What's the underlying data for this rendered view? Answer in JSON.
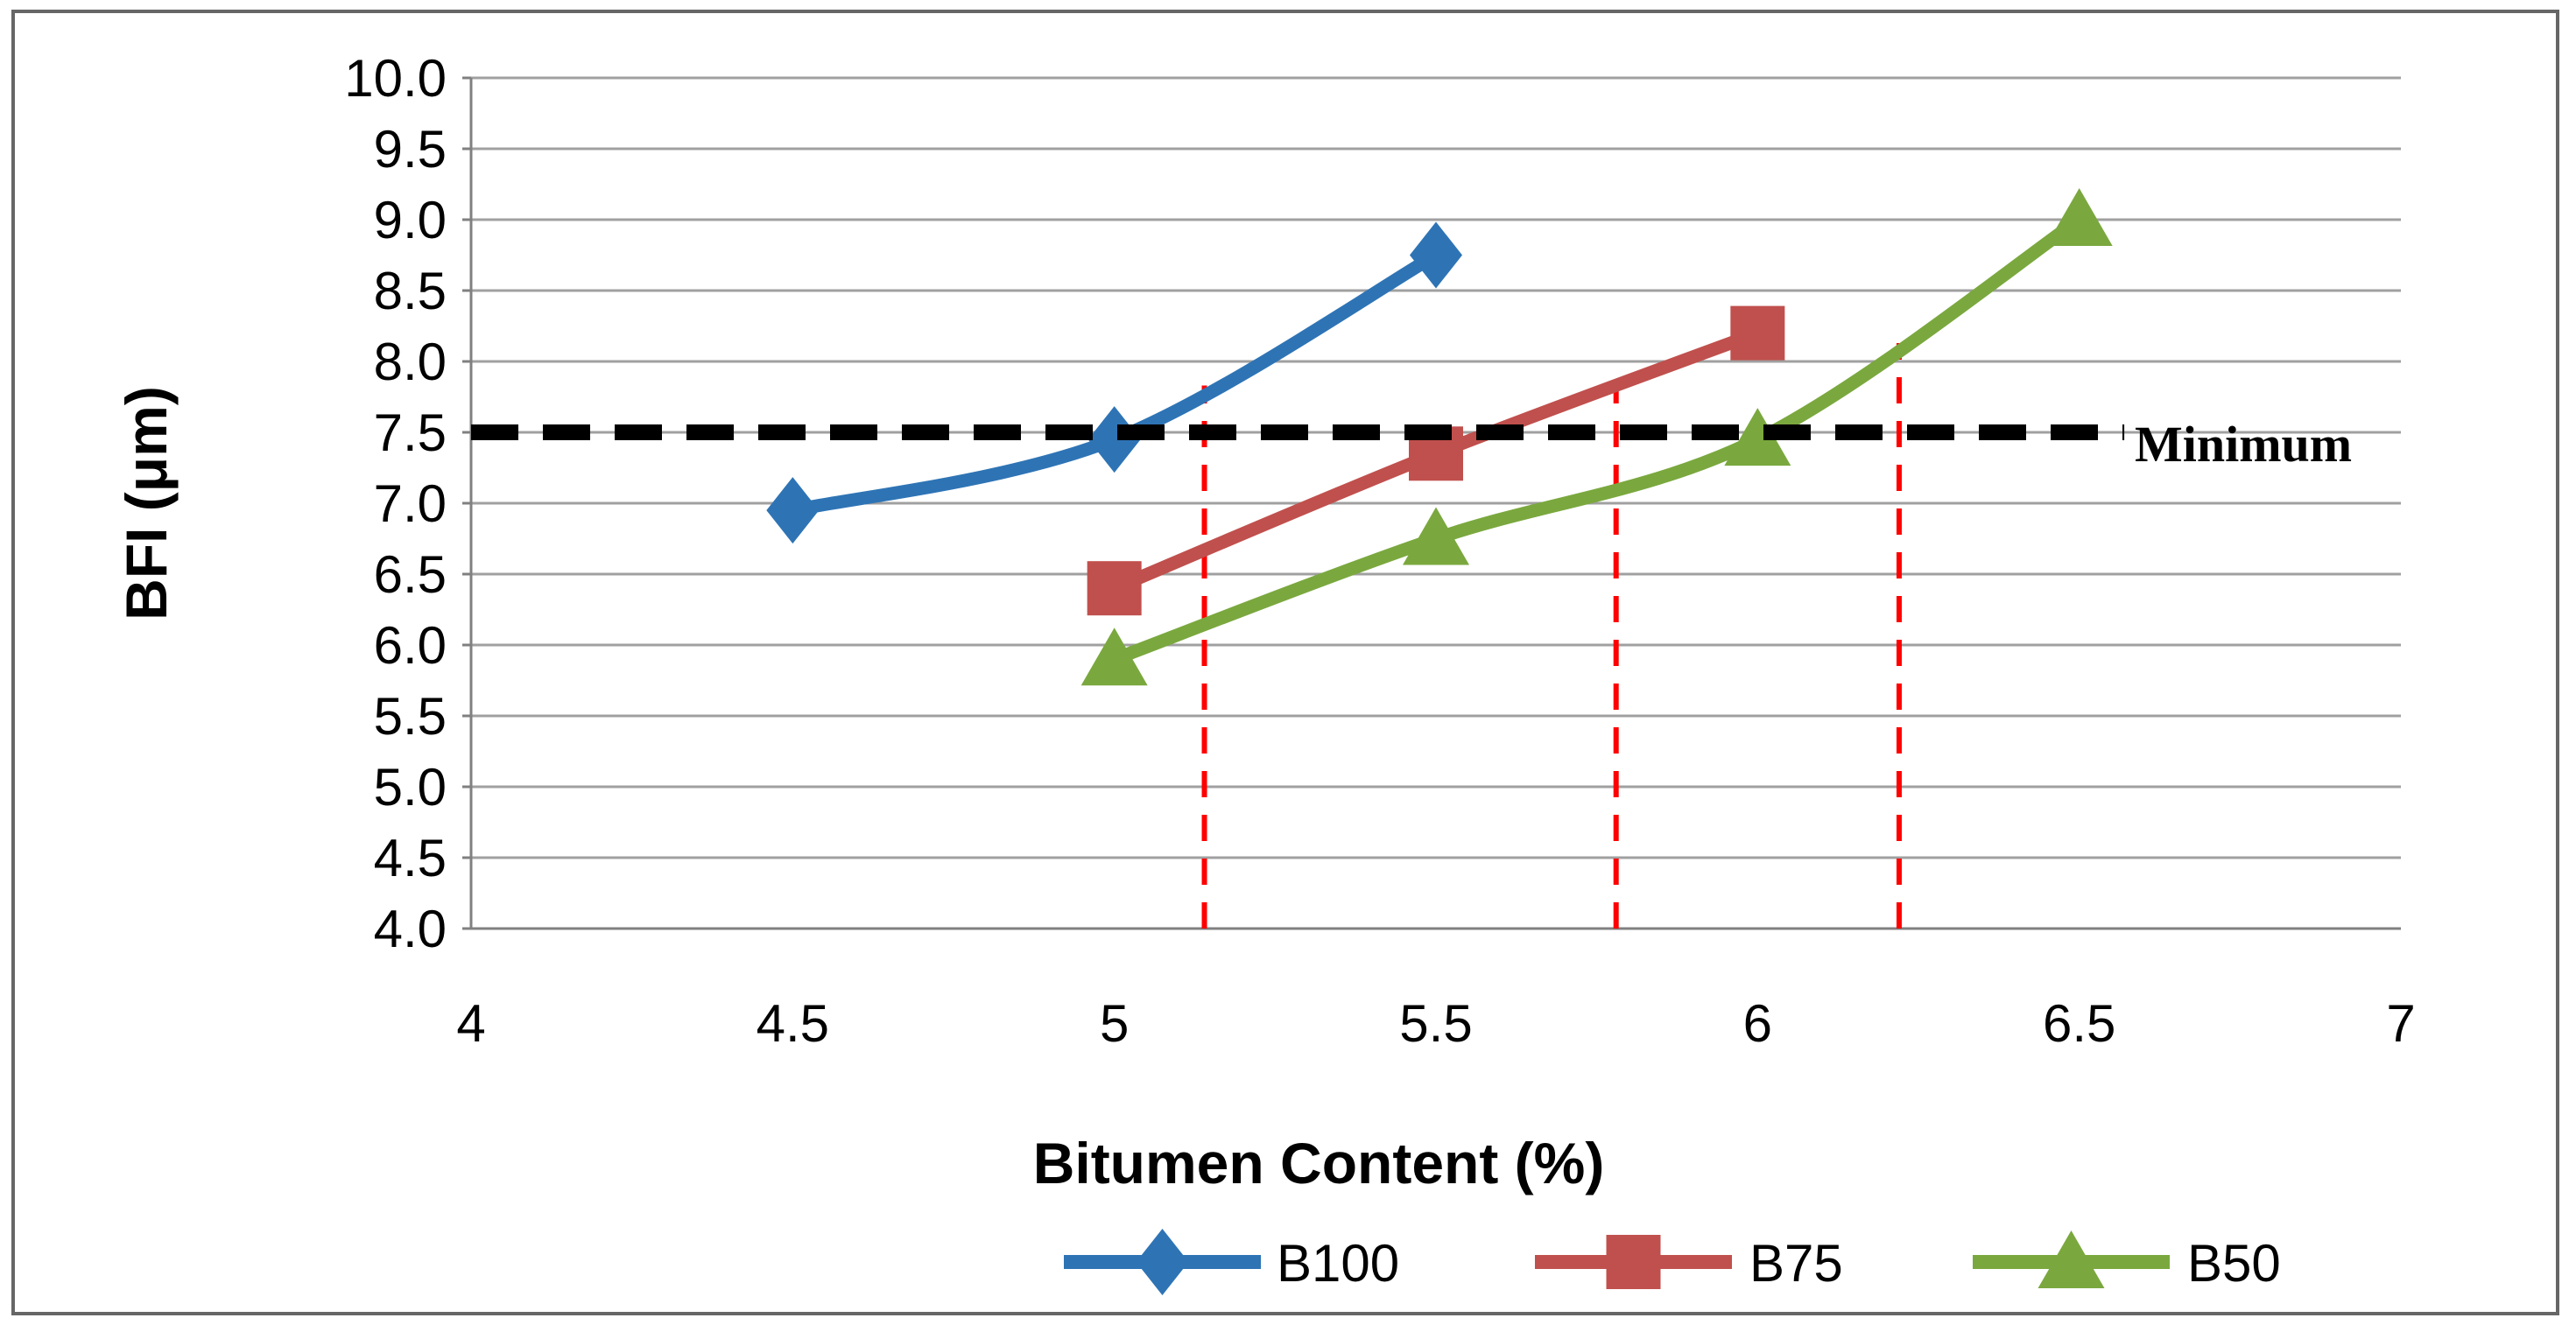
{
  "figure": {
    "background": "#ffffff",
    "border_color": "#666666",
    "gridline_color": "#a0a0a0",
    "axis_color": "#808080"
  },
  "chart_data": {
    "type": "line",
    "title": "",
    "xlabel": "Bitumen Content (%)",
    "ylabel": "BFI (μm)",
    "xlim": [
      4,
      7
    ],
    "ylim": [
      4,
      10
    ],
    "x_ticks": [
      "4",
      "4.5",
      "5",
      "5.5",
      "6",
      "6.5",
      "7"
    ],
    "y_ticks": [
      "4.0",
      "4.5",
      "5.0",
      "5.5",
      "6.0",
      "6.5",
      "7.0",
      "7.5",
      "8.0",
      "8.5",
      "9.0",
      "9.5",
      "10.0"
    ],
    "grid": true,
    "legend_position": "bottom",
    "series": [
      {
        "name": "B100",
        "color": "#2E74B5",
        "marker": "diamond",
        "points": [
          [
            4.5,
            6.95
          ],
          [
            5.0,
            7.45
          ],
          [
            5.5,
            8.75
          ]
        ]
      },
      {
        "name": "B75",
        "color": "#C0504D",
        "marker": "square",
        "points": [
          [
            5.0,
            6.4
          ],
          [
            5.5,
            7.35
          ],
          [
            6.0,
            8.2
          ]
        ]
      },
      {
        "name": "B50",
        "color": "#7AA83E",
        "marker": "triangle",
        "points": [
          [
            5.0,
            5.9
          ],
          [
            5.5,
            6.75
          ],
          [
            6.0,
            7.45
          ],
          [
            6.5,
            9.0
          ]
        ]
      }
    ],
    "reference_line": {
      "label": "Minimum",
      "y": 7.5,
      "x_start": 4.0,
      "x_end": 6.57,
      "color": "#000000",
      "style": "dashed"
    },
    "indicator_lines": {
      "color": "#FF0000",
      "style": "dashed",
      "y_bottom": 4.0,
      "lines": [
        {
          "x": 5.14,
          "y_top": 7.83
        },
        {
          "x": 5.78,
          "y_top": 7.81
        },
        {
          "x": 6.22,
          "y_top": 8.13
        }
      ]
    }
  }
}
